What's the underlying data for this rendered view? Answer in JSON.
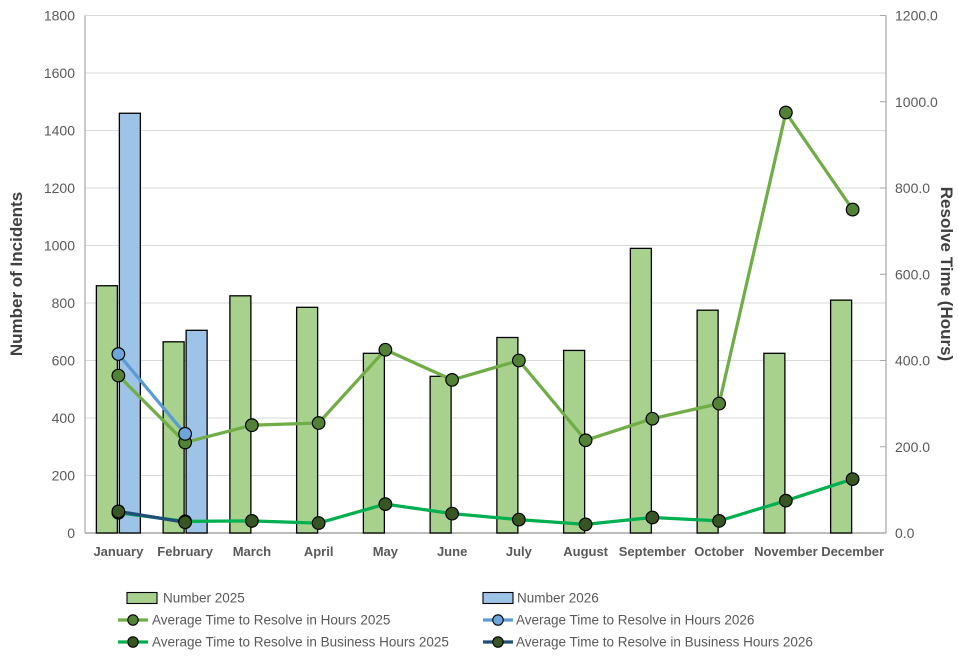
{
  "chart_data": {
    "type": "combo-bar-line",
    "title": "",
    "categories": [
      "January",
      "February",
      "March",
      "April",
      "May",
      "June",
      "July",
      "August",
      "September",
      "October",
      "November",
      "December"
    ],
    "bar_series": [
      {
        "name": "Number 2025",
        "axis": "left",
        "fill": "#a9d18e",
        "stroke": "#000000",
        "values": [
          860,
          665,
          825,
          785,
          625,
          545,
          680,
          635,
          990,
          775,
          625,
          810
        ]
      },
      {
        "name": "Number 2026",
        "axis": "left",
        "fill": "#9dc3e6",
        "stroke": "#000000",
        "values": [
          1460,
          705,
          null,
          null,
          null,
          null,
          null,
          null,
          null,
          null,
          null,
          null
        ]
      }
    ],
    "line_series": [
      {
        "name": "Average Time to Resolve in Hours 2025",
        "axis": "right",
        "color": "#70ad47",
        "marker_fill": "#538135",
        "values": [
          365,
          210,
          250,
          255,
          425,
          355,
          400,
          215,
          265,
          300,
          975,
          750
        ]
      },
      {
        "name": "Average Time to Resolve in Hours 2026",
        "axis": "right",
        "color": "#5b9bd5",
        "marker_fill": "#6ea6db",
        "values": [
          415,
          230,
          null,
          null,
          null,
          null,
          null,
          null,
          null,
          null,
          null,
          null
        ]
      },
      {
        "name": "Average Time to Resolve in Business Hours 2025",
        "axis": "right",
        "color": "#00b050",
        "marker_fill": "#375623",
        "values": [
          47,
          27,
          28,
          23,
          67,
          45,
          31,
          20,
          36,
          28,
          75,
          125
        ]
      },
      {
        "name": "Average Time to Resolve in Business Hours 2026",
        "axis": "right",
        "color": "#1f4e79",
        "marker_fill": "#375623",
        "values": [
          50,
          25,
          null,
          null,
          null,
          null,
          null,
          null,
          null,
          null,
          null,
          null
        ]
      }
    ],
    "left_axis": {
      "title": "Number of Incidents",
      "min": 0,
      "max": 1800,
      "step": 200
    },
    "right_axis": {
      "title": "Resolve Time (Hours)",
      "min": 0,
      "max": 1200,
      "step": 200,
      "tick_format": "one_decimal"
    },
    "gridlines": true,
    "legend_position": "bottom",
    "legend_columns": [
      [
        "Number 2025",
        "Average Time to Resolve in Hours 2025",
        "Average Time to Resolve in Business Hours 2025"
      ],
      [
        "Number 2026",
        "Average Time to Resolve in Hours 2026",
        "Average Time to Resolve in Business Hours 2026"
      ]
    ]
  },
  "colors": {
    "background": "#ffffff",
    "grid": "#d9d9d9",
    "axis_line": "#a6a6a6",
    "tick_text": "#595959",
    "month_text": "#595959",
    "axis_title_text": "#404040",
    "legend_text": "#595959"
  }
}
